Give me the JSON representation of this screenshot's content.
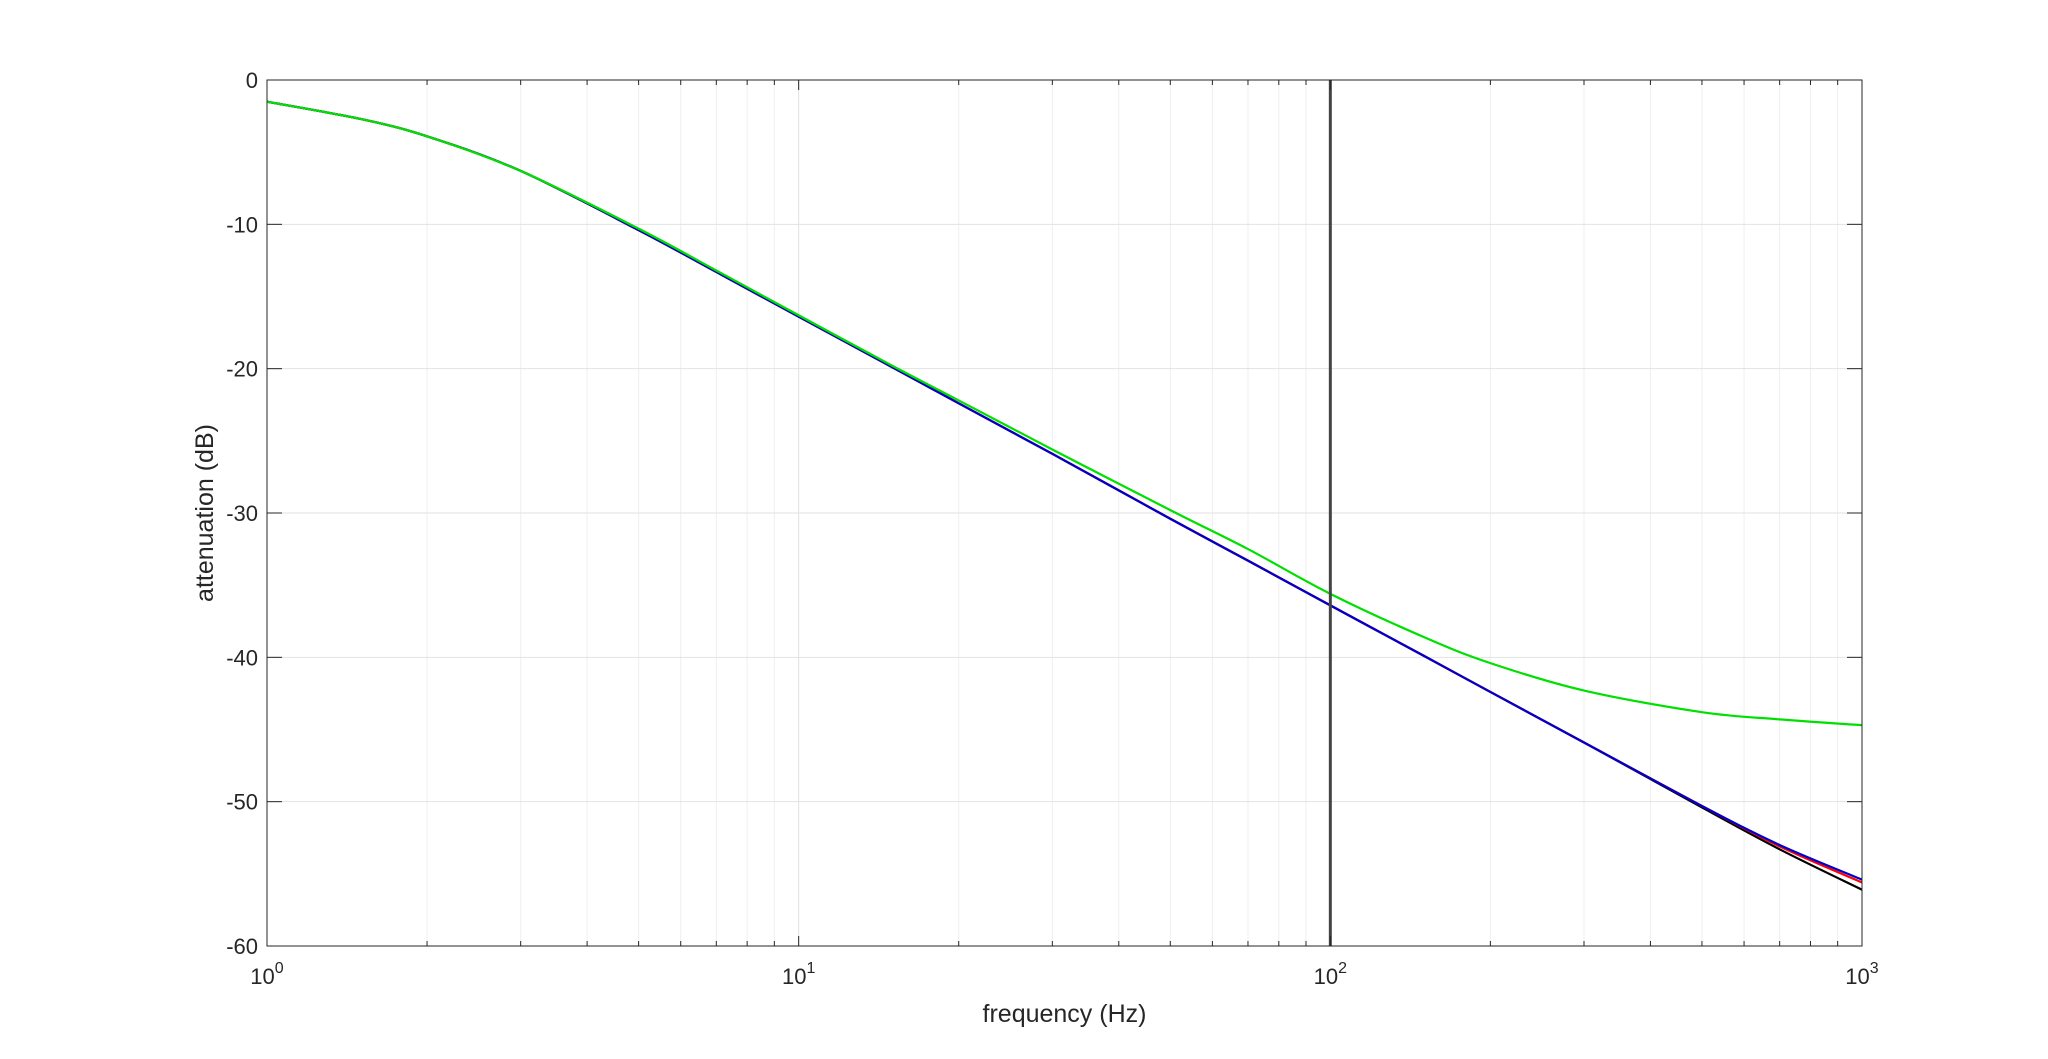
{
  "chart_data": {
    "type": "line",
    "title": "",
    "xlabel": "frequency (Hz)",
    "ylabel": "attenuation (dB)",
    "xscale": "log",
    "xlim": [
      1,
      1000
    ],
    "ylim": [
      -60,
      0
    ],
    "grid": true,
    "legend": "none",
    "x_ticks": [
      {
        "value": 1,
        "base": "10",
        "exp": "0"
      },
      {
        "value": 10,
        "base": "10",
        "exp": "1"
      },
      {
        "value": 100,
        "base": "10",
        "exp": "2"
      },
      {
        "value": 1000,
        "base": "10",
        "exp": "3"
      }
    ],
    "y_ticks": [
      {
        "value": 0,
        "label": "0"
      },
      {
        "value": -10,
        "label": "-10"
      },
      {
        "value": -20,
        "label": "-20"
      },
      {
        "value": -30,
        "label": "-30"
      },
      {
        "value": -40,
        "label": "-40"
      },
      {
        "value": -50,
        "label": "-50"
      },
      {
        "value": -60,
        "label": "-60"
      }
    ],
    "x": [
      1,
      1.5,
      2,
      3,
      5,
      7,
      10,
      15,
      20,
      30,
      50,
      70,
      100,
      150,
      200,
      300,
      500,
      700,
      1000
    ],
    "series": [
      {
        "color": "#000000",
        "values": [
          -1.5,
          -2.7,
          -3.9,
          -6.3,
          -10.4,
          -13.3,
          -16.4,
          -19.9,
          -22.4,
          -25.9,
          -30.4,
          -33.3,
          -36.4,
          -39.9,
          -42.4,
          -45.9,
          -50.4,
          -53.3,
          -56.1
        ]
      },
      {
        "color": "#ff0000",
        "values": [
          -1.5,
          -2.7,
          -3.9,
          -6.3,
          -10.4,
          -13.3,
          -16.4,
          -19.9,
          -22.4,
          -25.9,
          -30.4,
          -33.3,
          -36.4,
          -39.9,
          -42.4,
          -45.9,
          -50.3,
          -53.1,
          -55.6
        ]
      },
      {
        "color": "#0000cc",
        "values": [
          -1.5,
          -2.7,
          -3.9,
          -6.3,
          -10.4,
          -13.3,
          -16.4,
          -19.9,
          -22.4,
          -25.9,
          -30.4,
          -33.3,
          -36.4,
          -39.9,
          -42.4,
          -45.9,
          -50.3,
          -53.0,
          -55.4
        ]
      },
      {
        "color": "#00e000",
        "values": [
          -1.5,
          -2.7,
          -3.9,
          -6.3,
          -10.3,
          -13.2,
          -16.3,
          -19.8,
          -22.2,
          -25.6,
          -29.8,
          -32.5,
          -35.6,
          -38.6,
          -40.4,
          -42.3,
          -43.8,
          -44.3,
          -44.7
        ]
      }
    ],
    "vline": {
      "x": 100,
      "color": "#444444"
    }
  }
}
